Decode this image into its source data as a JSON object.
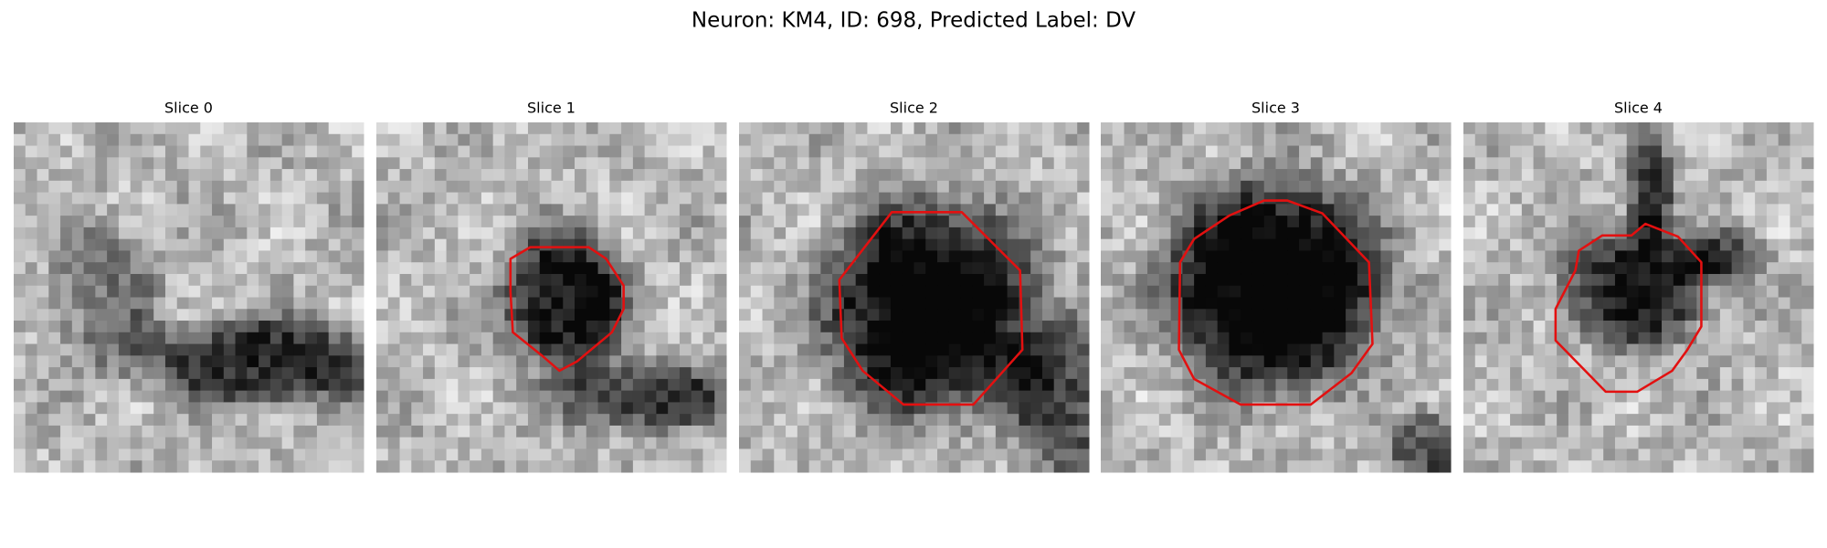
{
  "title": "Neuron: KM4, ID: 698, Predicted Label: DV",
  "panels": [
    {
      "title": "Slice 0"
    },
    {
      "title": "Slice 1"
    },
    {
      "title": "Slice 2"
    },
    {
      "title": "Slice 3"
    },
    {
      "title": "Slice 4"
    }
  ]
}
